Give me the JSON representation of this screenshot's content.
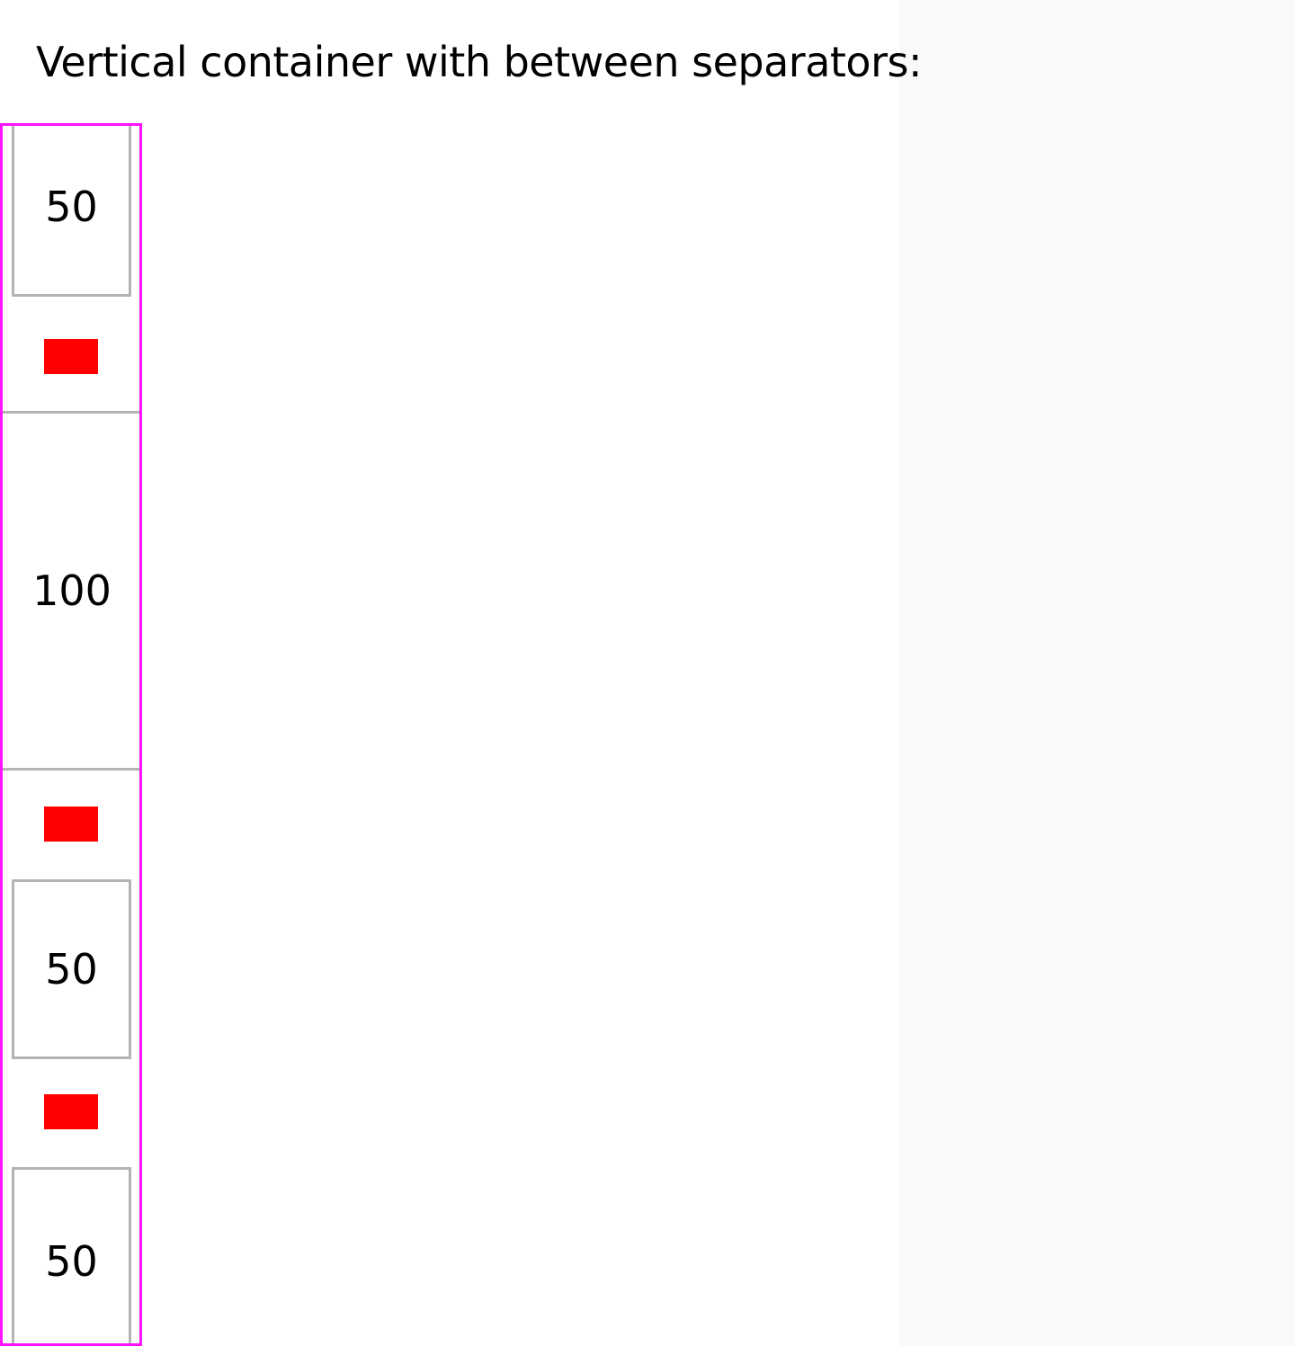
{
  "heading": "Vertical container with between separators:",
  "items": [
    {
      "label": "50"
    },
    {
      "label": "100"
    },
    {
      "label": "50"
    },
    {
      "label": "50"
    }
  ],
  "colors": {
    "container_border": "#ff14ff",
    "item_border": "#b4b4b4",
    "separator": "#ff0000",
    "side_panel": "#f9f9f9"
  }
}
